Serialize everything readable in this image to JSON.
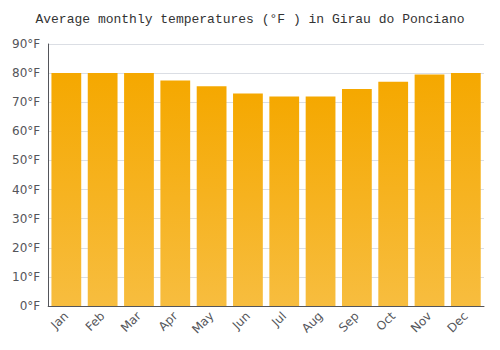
{
  "chart_data": {
    "type": "bar",
    "title": "Average monthly temperatures (°F ) in Girau do Ponciano",
    "categories": [
      "Jan",
      "Feb",
      "Mar",
      "Apr",
      "May",
      "Jun",
      "Jul",
      "Aug",
      "Sep",
      "Oct",
      "Nov",
      "Dec"
    ],
    "values": [
      80,
      80,
      80,
      77.5,
      75.5,
      73,
      72,
      72,
      74.5,
      77,
      79.5,
      80
    ],
    "color": "#F5A800",
    "ylim": [
      0,
      90
    ],
    "yticks": [
      {
        "value": 0,
        "label": "0°F"
      },
      {
        "value": 10,
        "label": "10°F"
      },
      {
        "value": 20,
        "label": "20°F"
      },
      {
        "value": 30,
        "label": "30°F"
      },
      {
        "value": 40,
        "label": "40°F"
      },
      {
        "value": 50,
        "label": "50°F"
      },
      {
        "value": 60,
        "label": "60°F"
      },
      {
        "value": 70,
        "label": "70°F"
      },
      {
        "value": 80,
        "label": "80°F"
      },
      {
        "value": 90,
        "label": "90°F"
      }
    ],
    "grid": true
  }
}
